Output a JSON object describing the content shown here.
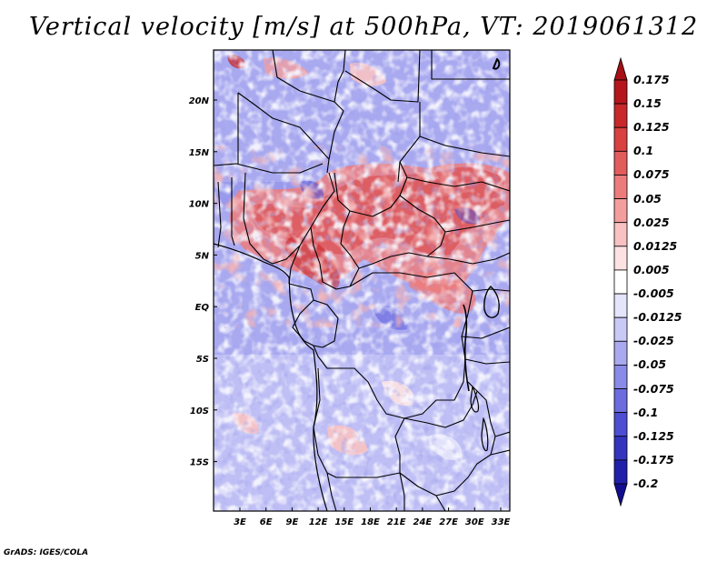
{
  "title": "Vertical velocity [m/s] at 500hPa, VT: 2019061312",
  "credit": "GrADS: IGES/COLA",
  "lat_ticks": [
    "20N",
    "15N",
    "10N",
    "5N",
    "EQ",
    "5S",
    "10S",
    "15S"
  ],
  "lon_ticks": [
    "3E",
    "6E",
    "9E",
    "12E",
    "15E",
    "18E",
    "21E",
    "24E",
    "27E",
    "30E",
    "33E"
  ],
  "colorbar": {
    "labels": [
      "0.175",
      "0.15",
      "0.125",
      "0.1",
      "0.075",
      "0.05",
      "0.025",
      "0.0125",
      "0.005",
      "-0.005",
      "-0.0125",
      "-0.025",
      "-0.05",
      "-0.075",
      "-0.1",
      "-0.125",
      "-0.175",
      "-0.2"
    ],
    "colors": [
      "#a50f15",
      "#b5161c",
      "#c9282b",
      "#d94040",
      "#e35c5c",
      "#ec7c7c",
      "#f39d9d",
      "#f8c2c2",
      "#fce2e2",
      "#ffffff",
      "#e4e4fb",
      "#c9c9f6",
      "#a9a9f0",
      "#8a8ae8",
      "#6c6cdf",
      "#4e4ed2",
      "#3434bf",
      "#2020aa",
      "#120e90"
    ]
  },
  "map_colors": {
    "rising_strong": "#c9282b",
    "rising": "#f39d9d",
    "neutral": "#ffffff",
    "sinking": "#a9a9f0",
    "sinking_strong": "#6c6cdf"
  }
}
